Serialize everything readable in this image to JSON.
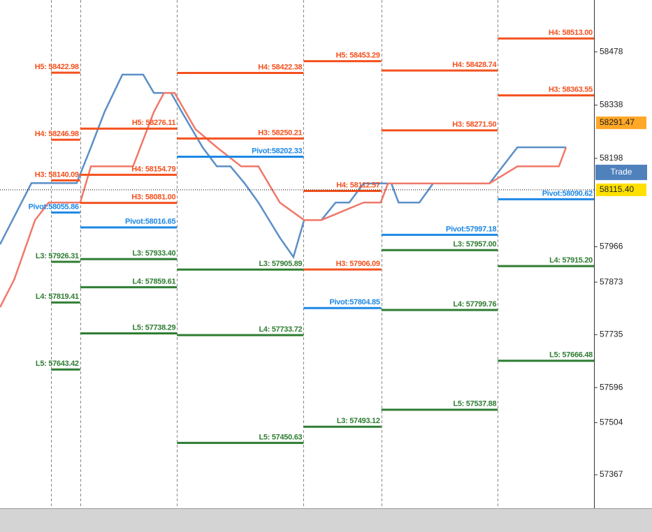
{
  "chart_data": {
    "type": "pivot-chart",
    "xlim": [
      0,
      100
    ],
    "ylim": [
      57290,
      58570
    ],
    "yticks": [
      58478,
      58338,
      58198,
      57966,
      57873,
      57735,
      57596,
      57504,
      57367
    ],
    "current_price": 58291.47,
    "bid_price": {
      "value": 58115.4,
      "label": "58115.40"
    },
    "trade_button": "Trade",
    "series": [
      {
        "color": "#5b8fc7",
        "x": [
          0,
          5.3,
          12.9,
          15.3,
          17.6,
          20.6,
          24.1,
          25.9,
          28.8,
          30.6,
          34.1,
          36.5,
          38.8,
          41.2,
          43.5,
          47.1,
          49.4,
          51.2,
          54.1,
          56.5,
          58.8,
          61.2,
          65.9,
          67.1,
          70.6,
          72.9,
          82.4,
          87.1,
          95.3
        ],
        "values": [
          57972,
          58133,
          58133,
          58227,
          58320,
          58418,
          58418,
          58370,
          58370,
          58320,
          58227,
          58177,
          58177,
          58132,
          58082,
          57990,
          57939,
          58036,
          58036,
          58082,
          58082,
          58132,
          58132,
          58082,
          58082,
          58132,
          58132,
          58227,
          58227
        ]
      },
      {
        "color": "#f0786a",
        "x": [
          0,
          2.4,
          5.9,
          8.2,
          13.5,
          15.3,
          22.4,
          25.9,
          27.6,
          29.4,
          32.9,
          36.5,
          40.6,
          43.5,
          47.1,
          51.2,
          54.1,
          61.2,
          64.1,
          65.3,
          82.4,
          87.1,
          94.1,
          95.3
        ],
        "values": [
          57807,
          57880,
          58036,
          58082,
          58082,
          58177,
          58177,
          58320,
          58370,
          58370,
          58275,
          58227,
          58177,
          58177,
          58082,
          58036,
          58036,
          58082,
          58082,
          58132,
          58132,
          58177,
          58177,
          58227
        ]
      }
    ],
    "periods": [
      {
        "x": [
          8.6,
          13.5
        ],
        "levels": [
          {
            "label": "H5: 58422.98",
            "value": 58422.98,
            "color": "#f4511e"
          },
          {
            "label": "H4: 58246.98",
            "value": 58246.98,
            "color": "#f4511e"
          },
          {
            "label": "H3: 58140.09",
            "value": 58140.09,
            "color": "#f4511e"
          },
          {
            "label": "Pivot:58055.86",
            "value": 58055.86,
            "color": "#1e88e5"
          },
          {
            "label": "L3: 57926.31",
            "value": 57926.31,
            "color": "#2e7d32"
          },
          {
            "label": "L4: 57819.41",
            "value": 57819.41,
            "color": "#2e7d32"
          },
          {
            "label": "L5: 57643.42",
            "value": 57643.42,
            "color": "#2e7d32"
          }
        ]
      },
      {
        "x": [
          13.5,
          29.8
        ],
        "levels": [
          {
            "label": "H5: 58276.11",
            "value": 58276.11,
            "color": "#f4511e"
          },
          {
            "label": "H4: 58154.79",
            "value": 58154.79,
            "color": "#f4511e"
          },
          {
            "label": "H3: 58081.00",
            "value": 58081,
            "color": "#f4511e"
          },
          {
            "label": "Pivot:58016.65",
            "value": 58016.65,
            "color": "#1e88e5"
          },
          {
            "label": "L3: 57933.40",
            "value": 57933.4,
            "color": "#2e7d32"
          },
          {
            "label": "L4: 57859.61",
            "value": 57859.61,
            "color": "#2e7d32"
          },
          {
            "label": "L5: 57738.29",
            "value": 57738.29,
            "color": "#2e7d32"
          }
        ]
      },
      {
        "x": [
          29.8,
          51.1
        ],
        "levels": [
          {
            "label": "H4: 58422.38",
            "value": 58422.38,
            "color": "#f4511e"
          },
          {
            "label": "H3: 58250.21",
            "value": 58250.21,
            "color": "#f4511e"
          },
          {
            "label": "Pivot:58202.33",
            "value": 58202.33,
            "color": "#1e88e5"
          },
          {
            "label": "L3: 57905.89",
            "value": 57905.89,
            "color": "#2e7d32"
          },
          {
            "label": "L4: 57733.72",
            "value": 57733.72,
            "color": "#2e7d32"
          },
          {
            "label": "L5: 57450.63",
            "value": 57450.63,
            "color": "#2e7d32"
          }
        ]
      },
      {
        "x": [
          51.1,
          64.2
        ],
        "levels": [
          {
            "label": "H5: 58453.29",
            "value": 58453.29,
            "color": "#f4511e"
          },
          {
            "label": "H4: 58112.57",
            "value": 58112.57,
            "color": "#f4511e"
          },
          {
            "label": "H3: 57906.09",
            "value": 57906.09,
            "color": "#f4511e"
          },
          {
            "label": "Pivot:57804.85",
            "value": 57804.85,
            "color": "#1e88e5"
          },
          {
            "label": "L3: 57493.12",
            "value": 57493.12,
            "color": "#2e7d32"
          }
        ]
      },
      {
        "x": [
          64.2,
          83.8
        ],
        "levels": [
          {
            "label": "H4: 58428.74",
            "value": 58428.74,
            "color": "#f4511e"
          },
          {
            "label": "H3: 58271.50",
            "value": 58271.5,
            "color": "#f4511e"
          },
          {
            "label": "Pivot:57997.18",
            "value": 57997.18,
            "color": "#1e88e5"
          },
          {
            "label": "L3: 57957.00",
            "value": 57957,
            "color": "#2e7d32"
          },
          {
            "label": "L4: 57799.76",
            "value": 57799.76,
            "color": "#2e7d32"
          },
          {
            "label": "L5: 57537.88",
            "value": 57537.88,
            "color": "#2e7d32"
          }
        ]
      },
      {
        "x": [
          83.8,
          100
        ],
        "levels": [
          {
            "label": "H4: 58513.00",
            "value": 58513,
            "color": "#f4511e"
          },
          {
            "label": "H3: 58363.55",
            "value": 58363.55,
            "color": "#f4511e"
          },
          {
            "label": "Pivot:58090.62",
            "value": 58090.62,
            "color": "#1e88e5"
          },
          {
            "label": "L4: 57915.20",
            "value": 57915.2,
            "color": "#2e7d32"
          },
          {
            "label": "L5: 57666.48",
            "value": 57666.48,
            "color": "#2e7d32"
          }
        ]
      }
    ]
  }
}
